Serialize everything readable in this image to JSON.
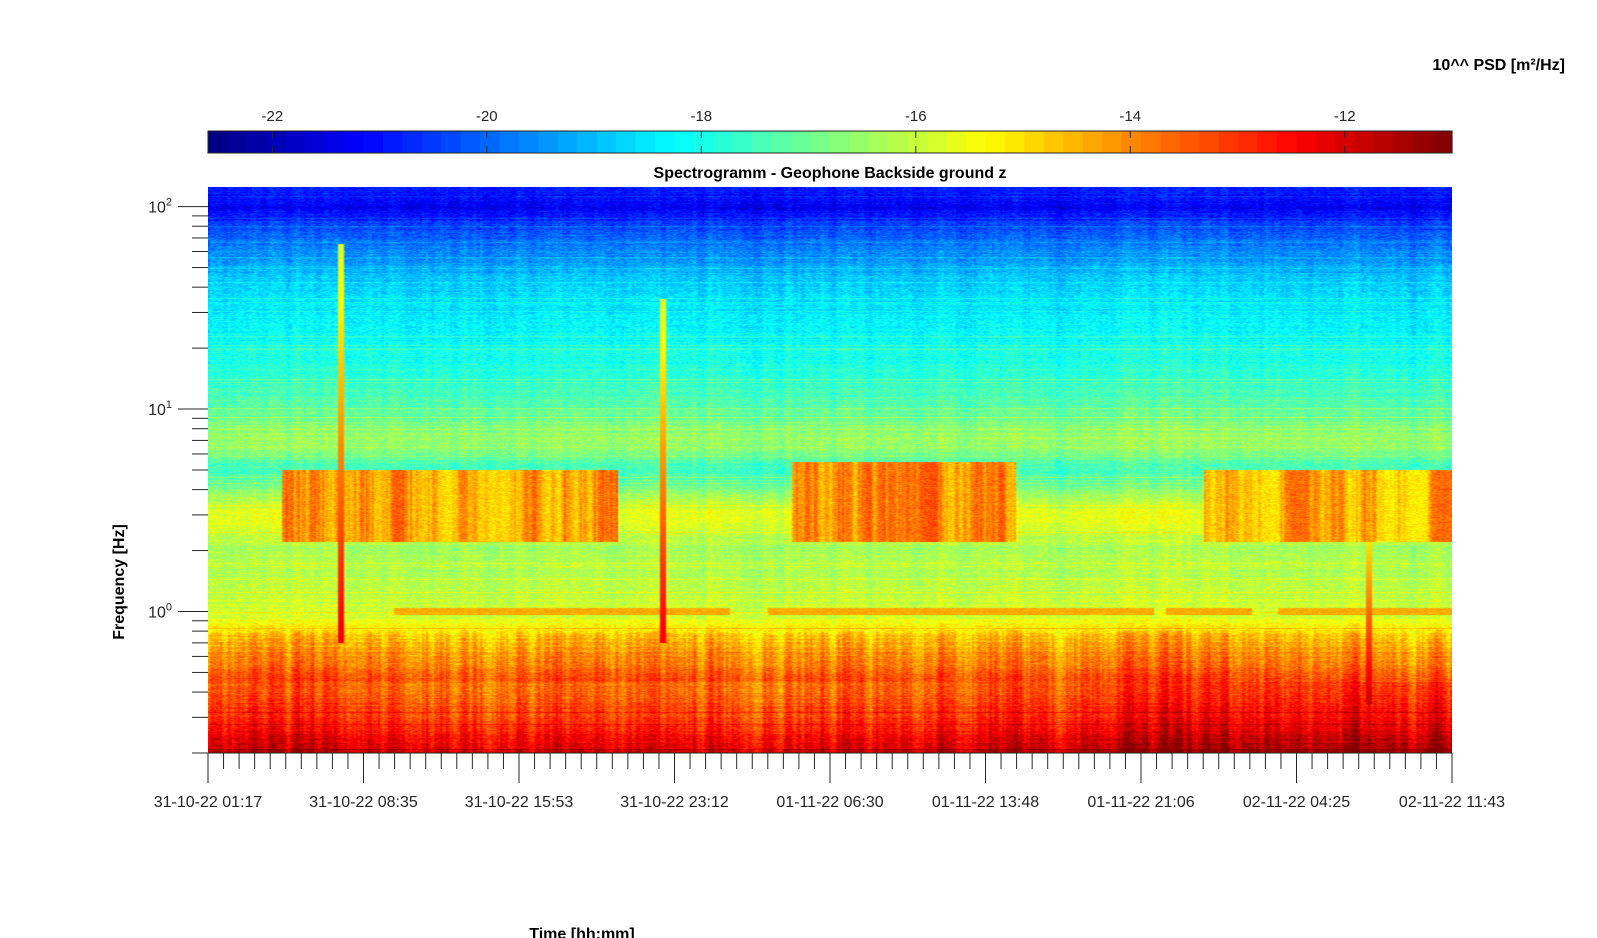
{
  "chart_data": {
    "type": "heatmap",
    "title": "Spectrogramm - Geophone Backside ground z",
    "xlabel": "Time [hh:mm]",
    "ylabel": "Frequency [Hz]",
    "colorbar_label": "10^^ PSD [m²/Hz]",
    "colormap": "jet",
    "colorbar_position": "top",
    "color_range": [
      -22.6,
      -11.0
    ],
    "colorbar_ticks": [
      "-22",
      "-20",
      "-18",
      "-16",
      "-14",
      "-12"
    ],
    "colorbar_tick_values": [
      -22,
      -20,
      -18,
      -16,
      -14,
      -12
    ],
    "y_scale": "log",
    "ylim": [
      0.2,
      125
    ],
    "y_ticks": [
      {
        "value": 1,
        "base": "10",
        "exp": "0"
      },
      {
        "value": 10,
        "base": "10",
        "exp": "1"
      },
      {
        "value": 100,
        "base": "10",
        "exp": "2"
      }
    ],
    "x_ticks": [
      "31-10-22 01:17",
      "31-10-22 08:35",
      "31-10-22 15:53",
      "31-10-22 23:12",
      "01-11-22 06:30",
      "01-11-22 13:48",
      "01-11-22 21:06",
      "02-11-22 04:25",
      "02-11-22 11:43"
    ],
    "x_minor_per_major": 10,
    "background_spectrum": [
      {
        "freq": 0.2,
        "level": -11.5
      },
      {
        "freq": 0.3,
        "level": -12.6
      },
      {
        "freq": 0.5,
        "level": -13.5
      },
      {
        "freq": 0.75,
        "level": -14.6
      },
      {
        "freq": 0.9,
        "level": -15.6
      },
      {
        "freq": 1.0,
        "level": -15.9
      },
      {
        "freq": 1.5,
        "level": -16.2
      },
      {
        "freq": 2.0,
        "level": -16.4
      },
      {
        "freq": 3.0,
        "level": -15.5
      },
      {
        "freq": 4.0,
        "level": -16.8
      },
      {
        "freq": 5.0,
        "level": -17.6
      },
      {
        "freq": 7.0,
        "level": -16.4
      },
      {
        "freq": 10.0,
        "level": -17.2
      },
      {
        "freq": 15.0,
        "level": -17.8
      },
      {
        "freq": 25.0,
        "level": -18.3
      },
      {
        "freq": 40.0,
        "level": -18.7
      },
      {
        "freq": 60.0,
        "level": -19.6
      },
      {
        "freq": 80.0,
        "level": -20.4
      },
      {
        "freq": 100.0,
        "level": -21.3
      },
      {
        "freq": 125.0,
        "level": -20.8
      }
    ],
    "events": [
      {
        "time_fraction": 0.107,
        "fmin": 0.7,
        "fmax": 65,
        "level": -12.3
      },
      {
        "time_fraction": 0.366,
        "fmin": 0.7,
        "fmax": 35,
        "level": -12.3
      },
      {
        "time_fraction": 0.933,
        "fmin": 0.35,
        "fmax": 2.5,
        "level": -11.8
      }
    ],
    "active_periods": [
      {
        "start_fraction": 0.06,
        "end_fraction": 0.33,
        "fmin": 2.2,
        "fmax": 5.0,
        "level": -13.4
      },
      {
        "start_fraction": 0.47,
        "end_fraction": 0.65,
        "fmin": 2.2,
        "fmax": 5.5,
        "level": -13.3
      },
      {
        "start_fraction": 0.8,
        "end_fraction": 1.0,
        "fmin": 2.2,
        "fmax": 5.0,
        "level": -13.6
      }
    ],
    "tonal_line": {
      "freq": 1.0,
      "level": -14.4,
      "segments": [
        [
          0.15,
          0.42
        ],
        [
          0.45,
          0.62
        ],
        [
          0.62,
          0.76
        ],
        [
          0.77,
          0.84
        ],
        [
          0.86,
          1.0
        ]
      ]
    }
  }
}
